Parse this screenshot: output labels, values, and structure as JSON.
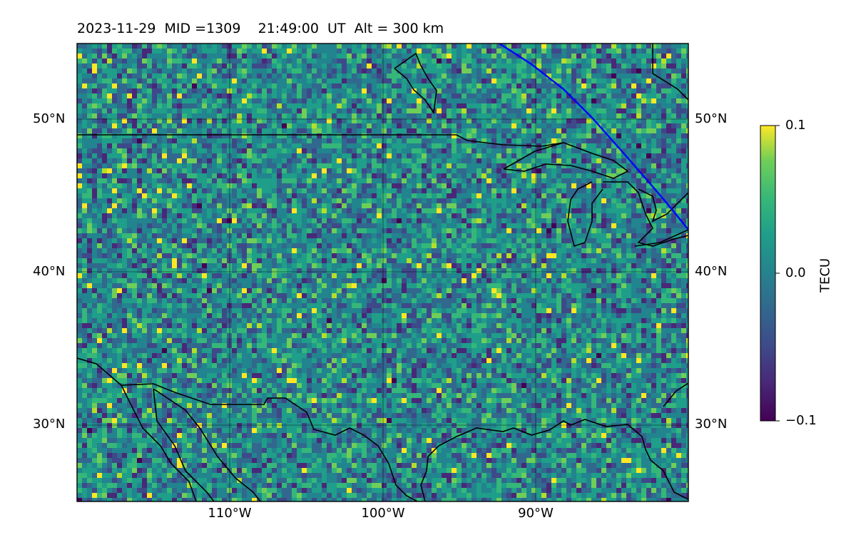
{
  "title": "2023-11-29  MID =1309    21:49:00  UT  Alt = 300 km",
  "map": {
    "lat_labels": [
      "50°N",
      "40°N",
      "30°N"
    ],
    "lon_labels": [
      "110°W",
      "100°W",
      "90°W"
    ],
    "lon_range": [
      -120,
      -80
    ],
    "lat_range": [
      25,
      55
    ]
  },
  "colorbar": {
    "label": "TECU",
    "colormap": "viridis",
    "ticks": [
      "0.1",
      "0.0",
      "−0.1"
    ],
    "min": -0.1,
    "max": 0.1
  },
  "colors": {
    "coastline": "#000000",
    "track": "#0000ff",
    "gridline": "#000000"
  }
}
